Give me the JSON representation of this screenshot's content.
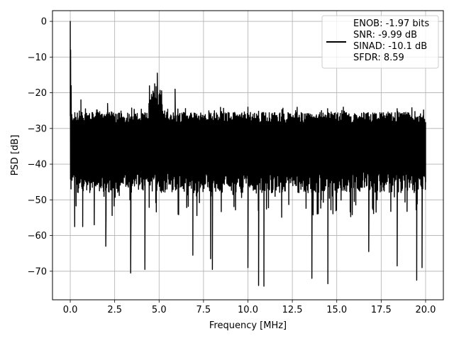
{
  "chart_data": {
    "type": "line",
    "title": "",
    "xlabel": "Frequency [MHz]",
    "ylabel": "PSD [dB]",
    "xlim": [
      -1,
      21
    ],
    "ylim": [
      -78,
      3
    ],
    "xticks": [
      0,
      2.5,
      5,
      7.5,
      10,
      12.5,
      15,
      17.5,
      20
    ],
    "xtick_labels": [
      "0.0",
      "2.5",
      "5.0",
      "7.5",
      "10.0",
      "12.5",
      "15.0",
      "17.5",
      "20.0"
    ],
    "yticks": [
      0,
      -10,
      -20,
      -30,
      -40,
      -50,
      -60,
      -70
    ],
    "ytick_labels": [
      "0",
      "−10",
      "−20",
      "−30",
      "−40",
      "−50",
      "−60",
      "−70"
    ],
    "grid": true,
    "legend_position": "top-right",
    "line_color": "#000000",
    "legend": {
      "lines": [
        "ENOB: -1.97 bits",
        "SNR: -9.99 dB",
        "SINAD: -10.1 dB",
        "SFDR: 8.59"
      ]
    },
    "series": [
      {
        "x_range": [
          0,
          20
        ],
        "noise_floor_db": [
          -47,
          -24
        ],
        "typical_db": [
          -45,
          -27
        ],
        "points": [
          {
            "x": 0.0,
            "y": 0.0
          },
          {
            "x": 0.02,
            "y": -8
          },
          {
            "x": 0.05,
            "y": -18
          },
          {
            "x": 0.1,
            "y": -27
          },
          {
            "x": 0.25,
            "y": -57.5
          },
          {
            "x": 0.6,
            "y": -22
          },
          {
            "x": 0.7,
            "y": -57.5
          },
          {
            "x": 1.35,
            "y": -57
          },
          {
            "x": 2.0,
            "y": -63
          },
          {
            "x": 2.1,
            "y": -23
          },
          {
            "x": 3.4,
            "y": -70.5
          },
          {
            "x": 4.2,
            "y": -69.5
          },
          {
            "x": 4.75,
            "y": -17.5
          },
          {
            "x": 4.9,
            "y": -14.5
          },
          {
            "x": 5.1,
            "y": -22
          },
          {
            "x": 5.9,
            "y": -19
          },
          {
            "x": 6.9,
            "y": -65.5
          },
          {
            "x": 7.9,
            "y": -66.5
          },
          {
            "x": 8.0,
            "y": -69.5
          },
          {
            "x": 10.0,
            "y": -69
          },
          {
            "x": 10.6,
            "y": -74
          },
          {
            "x": 10.9,
            "y": -74.2
          },
          {
            "x": 13.6,
            "y": -72
          },
          {
            "x": 14.5,
            "y": -73.5
          },
          {
            "x": 16.8,
            "y": -64.5
          },
          {
            "x": 18.4,
            "y": -68.5
          },
          {
            "x": 19.5,
            "y": -72.5
          },
          {
            "x": 19.8,
            "y": -69
          },
          {
            "x": 20.0,
            "y": -45
          }
        ]
      }
    ]
  }
}
